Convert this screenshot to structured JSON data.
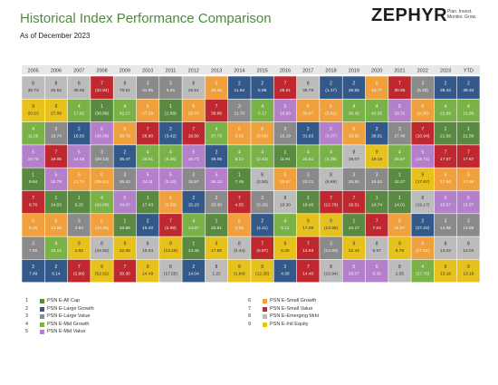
{
  "header": {
    "title": "Historical Index Performance Comparison",
    "subtitle": "As of December 2023",
    "logo_text": "ZEPHYR",
    "logo_tagline": "Plan. Invest. Monitor. Grow."
  },
  "colors": {
    "1": "#5a8a42",
    "2": "#33598b",
    "3": "#8a8a8a",
    "4": "#79b247",
    "5": "#b47fcb",
    "6": "#f0a03c",
    "7": "#c0282f",
    "8": "#bcbcbc",
    "9": "#e8c21c"
  },
  "legend": [
    {
      "num": "1",
      "label": "PSN E-All Cap"
    },
    {
      "num": "2",
      "label": "PSN E-Large Growth"
    },
    {
      "num": "3",
      "label": "PSN E-Large Value"
    },
    {
      "num": "4",
      "label": "PSN E-Mid Growth"
    },
    {
      "num": "5",
      "label": "PSN E-Mid Value"
    },
    {
      "num": "6",
      "label": "PSN E-Small Growth"
    },
    {
      "num": "7",
      "label": "PSN E-Small Value"
    },
    {
      "num": "8",
      "label": "PSN E-Emerging Mrkt"
    },
    {
      "num": "9",
      "label": "PSN E-Intl Equity"
    }
  ],
  "chart_data": {
    "type": "heatmap",
    "columns": [
      "2005",
      "2006",
      "2007",
      "2008",
      "2009",
      "2010",
      "2011",
      "2012",
      "2013",
      "2014",
      "2015",
      "2016",
      "2017",
      "2018",
      "2019",
      "2020",
      "2021",
      "2022",
      "2023",
      "YTD"
    ],
    "cells": [
      [
        {
          "id": "8",
          "v": "35.73"
        },
        {
          "id": "8",
          "v": "33.52"
        },
        {
          "id": "8",
          "v": "38.95"
        },
        {
          "id": "7",
          "v": "(32.94)"
        },
        {
          "id": "8",
          "v": "78.51"
        },
        {
          "id": "3",
          "v": "31.85"
        },
        {
          "id": "3",
          "v": "5.55"
        },
        {
          "id": "8",
          "v": "19.81"
        },
        {
          "id": "6",
          "v": "45.45"
        },
        {
          "id": "2",
          "v": "11.94"
        },
        {
          "id": "2",
          "v": "5.96"
        },
        {
          "id": "7",
          "v": "28.51"
        },
        {
          "id": "8",
          "v": "36.79"
        },
        {
          "id": "2",
          "v": "(1.17)"
        },
        {
          "id": "2",
          "v": "35.55"
        },
        {
          "id": "6",
          "v": "43.77"
        },
        {
          "id": "7",
          "v": "30.56"
        },
        {
          "id": "3",
          "v": "(6.33)"
        },
        {
          "id": "2",
          "v": "39.34"
        },
        {
          "id": "2",
          "v": "39.34"
        }
      ],
      [
        {
          "id": "9",
          "v": "20.63"
        },
        {
          "id": "9",
          "v": "27.09"
        },
        {
          "id": "4",
          "v": "17.82"
        },
        {
          "id": "1",
          "v": "(36.89)"
        },
        {
          "id": "4",
          "v": "42.17"
        },
        {
          "id": "6",
          "v": "27.29"
        },
        {
          "id": "1",
          "v": "(1.89)"
        },
        {
          "id": "6",
          "v": "18.70"
        },
        {
          "id": "7",
          "v": "39.86"
        },
        {
          "id": "3",
          "v": "11.70"
        },
        {
          "id": "4",
          "v": "0.17"
        },
        {
          "id": "5",
          "v": "18.93"
        },
        {
          "id": "6",
          "v": "30.87"
        },
        {
          "id": "6",
          "v": "(3.82)"
        },
        {
          "id": "4",
          "v": "30.42"
        },
        {
          "id": "4",
          "v": "43.05"
        },
        {
          "id": "5",
          "v": "28.31"
        },
        {
          "id": "6",
          "v": "(9.30)"
        },
        {
          "id": "4",
          "v": "21.89"
        },
        {
          "id": "4",
          "v": "21.89"
        }
      ],
      [
        {
          "id": "4",
          "v": "11.66"
        },
        {
          "id": "3",
          "v": "19.74"
        },
        {
          "id": "2",
          "v": "16.50"
        },
        {
          "id": "5",
          "v": "(39.06)"
        },
        {
          "id": "6",
          "v": "38.79"
        },
        {
          "id": "7",
          "v": "26.80"
        },
        {
          "id": "2",
          "v": "(3.42)"
        },
        {
          "id": "7",
          "v": "18.50"
        },
        {
          "id": "4",
          "v": "37.79"
        },
        {
          "id": "6",
          "v": "9.55"
        },
        {
          "id": "6",
          "v": "(0.69)"
        },
        {
          "id": "3",
          "v": "15.19"
        },
        {
          "id": "2",
          "v": "31.63"
        },
        {
          "id": "5",
          "v": "(4.37)"
        },
        {
          "id": "6",
          "v": "29.95"
        },
        {
          "id": "2",
          "v": "38.01"
        },
        {
          "id": "3",
          "v": "27.49"
        },
        {
          "id": "7",
          "v": "(10.94)"
        },
        {
          "id": "1",
          "v": "21.56"
        },
        {
          "id": "1",
          "v": "21.56"
        }
      ],
      [
        {
          "id": "5",
          "v": "10.75"
        },
        {
          "id": "7",
          "v": "19.05"
        },
        {
          "id": "5",
          "v": "14.56"
        },
        {
          "id": "3",
          "v": "(39.12)"
        },
        {
          "id": "2",
          "v": "35.47"
        },
        {
          "id": "4",
          "v": "25.51"
        },
        {
          "id": "4",
          "v": "(5.36)"
        },
        {
          "id": "5",
          "v": "16.73"
        },
        {
          "id": "2",
          "v": "36.05"
        },
        {
          "id": "4",
          "v": "8.22"
        },
        {
          "id": "4",
          "v": "(2.42)"
        },
        {
          "id": "1",
          "v": "11.91"
        },
        {
          "id": "4",
          "v": "25.51"
        },
        {
          "id": "4",
          "v": "(4.39)"
        },
        {
          "id": "8",
          "v": "28.07"
        },
        {
          "id": "9",
          "v": "19.15"
        },
        {
          "id": "4",
          "v": "25.67"
        },
        {
          "id": "5",
          "v": "(16.71)"
        },
        {
          "id": "7",
          "v": "17.67"
        },
        {
          "id": "7",
          "v": "17.67"
        }
      ],
      [
        {
          "id": "1",
          "v": "9.64"
        },
        {
          "id": "5",
          "v": "16.79"
        },
        {
          "id": "6",
          "v": "11.74"
        },
        {
          "id": "6",
          "v": "(39.81)"
        },
        {
          "id": "3",
          "v": "36.43"
        },
        {
          "id": "5",
          "v": "24.11"
        },
        {
          "id": "5",
          "v": "(2.16)"
        },
        {
          "id": "3",
          "v": "15.57"
        },
        {
          "id": "5",
          "v": "36.13"
        },
        {
          "id": "1",
          "v": "7.49"
        },
        {
          "id": "8",
          "v": "(2.50)"
        },
        {
          "id": "6",
          "v": "10.97"
        },
        {
          "id": "3",
          "v": "23.71"
        },
        {
          "id": "8",
          "v": "(6.69)"
        },
        {
          "id": "3",
          "v": "26.82"
        },
        {
          "id": "3",
          "v": "16.51"
        },
        {
          "id": "1",
          "v": "22.27"
        },
        {
          "id": "9",
          "v": "(17.87)"
        },
        {
          "id": "6",
          "v": "17.56"
        },
        {
          "id": "6",
          "v": "17.56"
        }
      ],
      [
        {
          "id": "7",
          "v": "8.70"
        },
        {
          "id": "1",
          "v": "14.03"
        },
        {
          "id": "1",
          "v": "8.25"
        },
        {
          "id": "4",
          "v": "(42.08)"
        },
        {
          "id": "5",
          "v": "34.47"
        },
        {
          "id": "1",
          "v": "17.43"
        },
        {
          "id": "6",
          "v": "(2.59)"
        },
        {
          "id": "2",
          "v": "15.23"
        },
        {
          "id": "3",
          "v": "33.30"
        },
        {
          "id": "7",
          "v": "4.55"
        },
        {
          "id": "3",
          "v": "(3.20)"
        },
        {
          "id": "8",
          "v": "10.30"
        },
        {
          "id": "1",
          "v": "18.46"
        },
        {
          "id": "7",
          "v": "(12.79)"
        },
        {
          "id": "7",
          "v": "26.51"
        },
        {
          "id": "1",
          "v": "14.74"
        },
        {
          "id": "1",
          "v": "14.01"
        },
        {
          "id": "8",
          "v": "(19.17)"
        },
        {
          "id": "5",
          "v": "15.87"
        },
        {
          "id": "5",
          "v": "15.87"
        }
      ],
      [
        {
          "id": "6",
          "v": "6.20"
        },
        {
          "id": "6",
          "v": "13.68"
        },
        {
          "id": "3",
          "v": "3.94"
        },
        {
          "id": "6",
          "v": "(43.25)"
        },
        {
          "id": "1",
          "v": "33.98"
        },
        {
          "id": "2",
          "v": "16.40"
        },
        {
          "id": "7",
          "v": "(2.98)"
        },
        {
          "id": "4",
          "v": "14.87"
        },
        {
          "id": "1",
          "v": "32.81"
        },
        {
          "id": "6",
          "v": "3.25"
        },
        {
          "id": "2",
          "v": "(4.11)"
        },
        {
          "id": "4",
          "v": "6.21"
        },
        {
          "id": "9",
          "v": "17.09"
        },
        {
          "id": "9",
          "v": "(13.95)"
        },
        {
          "id": "1",
          "v": "24.17"
        },
        {
          "id": "7",
          "v": "7.04"
        },
        {
          "id": "6",
          "v": "11.87"
        },
        {
          "id": "2",
          "v": "(27.22)"
        },
        {
          "id": "3",
          "v": "14.96"
        },
        {
          "id": "3",
          "v": "14.96"
        }
      ],
      [
        {
          "id": "3",
          "v": "7.60"
        },
        {
          "id": "4",
          "v": "10.14"
        },
        {
          "id": "9",
          "v": "2.82"
        },
        {
          "id": "8",
          "v": "(44.50)"
        },
        {
          "id": "9",
          "v": "32.98"
        },
        {
          "id": "8",
          "v": "15.04"
        },
        {
          "id": "9",
          "v": "(13.29)"
        },
        {
          "id": "1",
          "v": "14.46"
        },
        {
          "id": "9",
          "v": "17.85"
        },
        {
          "id": "8",
          "v": "(0.44)"
        },
        {
          "id": "7",
          "v": "(5.97)"
        },
        {
          "id": "9",
          "v": "5.30"
        },
        {
          "id": "7",
          "v": "14.63"
        },
        {
          "id": "3",
          "v": "(14.90)"
        },
        {
          "id": "9",
          "v": "22.44"
        },
        {
          "id": "8",
          "v": "6.57"
        },
        {
          "id": "9",
          "v": "8.79"
        },
        {
          "id": "6",
          "v": "(27.51)"
        },
        {
          "id": "8",
          "v": "14.04"
        },
        {
          "id": "8",
          "v": "14.04"
        }
      ],
      [
        {
          "id": "2",
          "v": "7.49"
        },
        {
          "id": "2",
          "v": "8.14"
        },
        {
          "id": "7",
          "v": "(2.89)"
        },
        {
          "id": "9",
          "v": "(52.82)"
        },
        {
          "id": "7",
          "v": "30.30"
        },
        {
          "id": "9",
          "v": "14.49"
        },
        {
          "id": "8",
          "v": "(17.55)"
        },
        {
          "id": "2",
          "v": "14.04"
        },
        {
          "id": "8",
          "v": "1.22"
        },
        {
          "id": "9",
          "v": "(1.84)"
        },
        {
          "id": "9",
          "v": "(12.35)"
        },
        {
          "id": "2",
          "v": "4.30"
        },
        {
          "id": "7",
          "v": "14.40"
        },
        {
          "id": "8",
          "v": "(15.94)"
        },
        {
          "id": "5",
          "v": "20.07"
        },
        {
          "id": "5",
          "v": "6.38"
        },
        {
          "id": "8",
          "v": "2.05"
        },
        {
          "id": "4",
          "v": "(27.76)"
        },
        {
          "id": "9",
          "v": "13.18"
        },
        {
          "id": "9",
          "v": "13.18"
        }
      ]
    ]
  }
}
